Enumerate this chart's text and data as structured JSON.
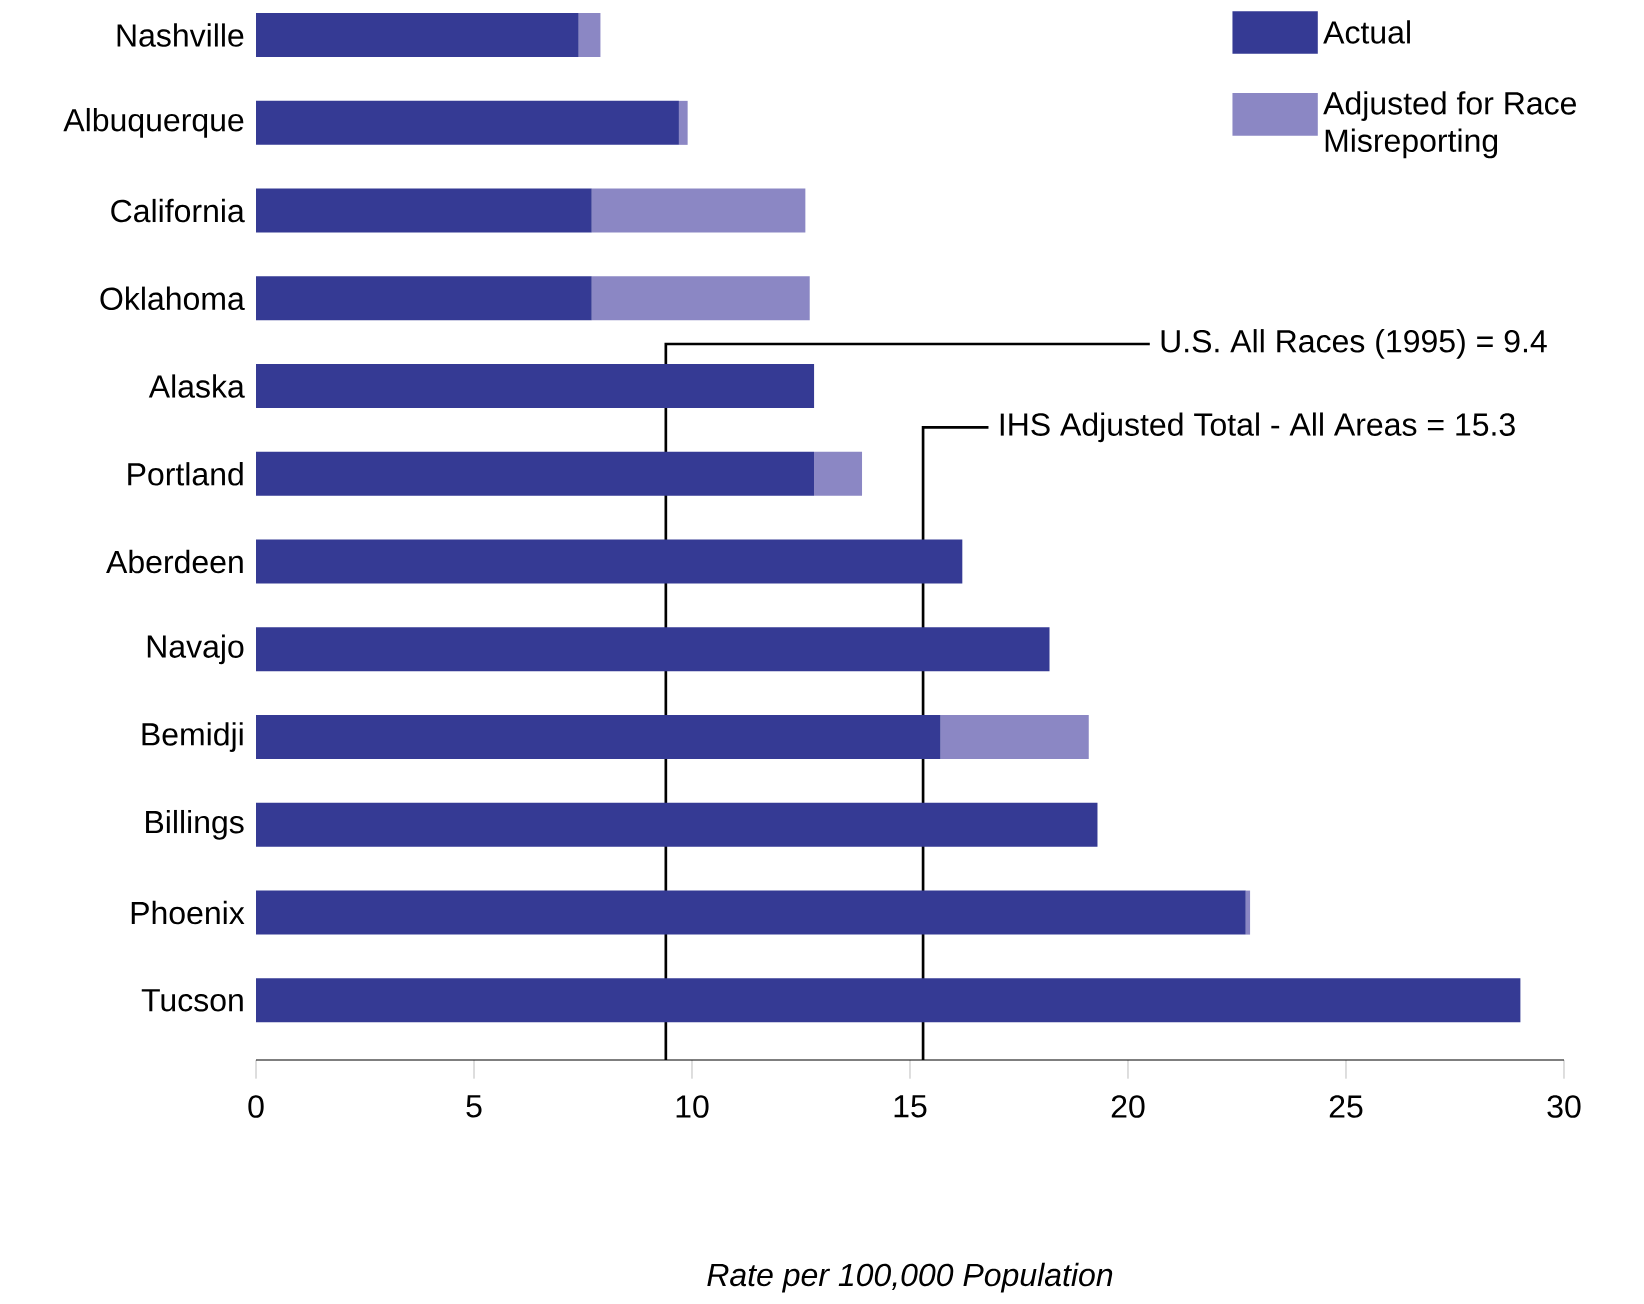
{
  "chart_data": {
    "type": "bar",
    "orientation": "horizontal",
    "stacked": true,
    "xlabel": "Rate per 100,000 Population",
    "categories": [
      "Nashville",
      "Albuquerque",
      "California",
      "Oklahoma",
      "Alaska",
      "Portland",
      "Aberdeen",
      "Navajo",
      "Bemidji",
      "Billings",
      "Phoenix",
      "Tucson"
    ],
    "series": [
      {
        "name": "Actual",
        "color": "#353a94",
        "values": [
          7.4,
          9.7,
          7.7,
          7.7,
          12.8,
          12.8,
          16.2,
          18.2,
          15.7,
          19.3,
          22.7,
          29.0
        ]
      },
      {
        "name": "Adjusted for Race Misreporting",
        "color": "#8b87c4",
        "values": [
          0.5,
          0.2,
          4.9,
          5.0,
          null,
          1.1,
          null,
          null,
          3.4,
          null,
          0.1,
          null
        ]
      }
    ],
    "xlim": [
      0,
      30
    ],
    "xticks": [
      0,
      5,
      10,
      15,
      20,
      25,
      30
    ],
    "ref_lines": [
      {
        "axis": "x",
        "value": 9.4,
        "label": "U.S. All Races (1995) = 9.4",
        "color": "#000000"
      },
      {
        "axis": "x",
        "value": 15.3,
        "label": "IHS Adjusted Total - All Areas = 15.3",
        "color": "#000000"
      }
    ],
    "legend": "top right",
    "grid": false
  }
}
